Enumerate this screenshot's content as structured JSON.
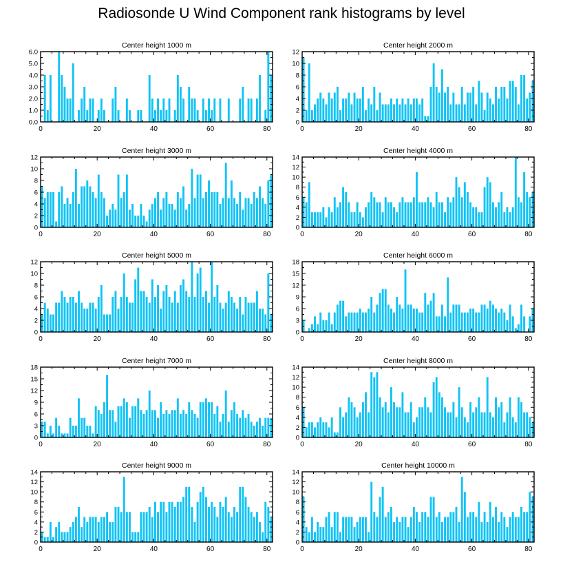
{
  "figure": {
    "title": "Radiosonde U Wind Component rank histograms by level",
    "bar_color": "#12c3f5"
  },
  "chart_data": [
    {
      "type": "bar",
      "title": "Center height 1000 m",
      "xlim": [
        0,
        82
      ],
      "ylim": [
        0,
        6
      ],
      "xticks": [
        0,
        20,
        40,
        60,
        80
      ],
      "yticks": [
        0,
        1,
        2,
        3,
        4,
        5,
        6
      ],
      "ytick_labels": [
        "0.0",
        "1.0",
        "2.0",
        "3.0",
        "4.0",
        "5.0",
        "6.0"
      ],
      "values": [
        0,
        4,
        1,
        4,
        0,
        0,
        6,
        4,
        3,
        2,
        2,
        5,
        0,
        1,
        2,
        3,
        1,
        2,
        2,
        0,
        1,
        2,
        1,
        0,
        0,
        2,
        3,
        1,
        0,
        0,
        2,
        1,
        0,
        0,
        1,
        1,
        0,
        0,
        4,
        2,
        1,
        2,
        1,
        2,
        1,
        2,
        0,
        1,
        4,
        3,
        2,
        0,
        3,
        2,
        2,
        1,
        0,
        2,
        1,
        2,
        1,
        2,
        0,
        2,
        0,
        0,
        2,
        0,
        0,
        0,
        2,
        3,
        0,
        2,
        2,
        0,
        2,
        4,
        0,
        1,
        6,
        4
      ]
    },
    {
      "type": "bar",
      "title": "Center height 2000 m",
      "xlim": [
        0,
        82
      ],
      "ylim": [
        0,
        12
      ],
      "xticks": [
        0,
        20,
        40,
        60,
        80
      ],
      "yticks": [
        0,
        2,
        4,
        6,
        8,
        10,
        12
      ],
      "values": [
        11,
        2,
        10,
        2,
        3,
        4,
        5,
        4,
        3,
        5,
        4,
        5,
        6,
        2,
        4,
        4,
        5,
        3,
        5,
        4,
        4,
        6,
        2,
        4,
        3,
        6,
        2,
        5,
        3,
        3,
        3,
        4,
        3,
        4,
        3,
        4,
        3,
        4,
        3,
        4,
        4,
        3,
        4,
        1,
        1,
        6,
        10,
        6,
        5,
        9,
        5,
        6,
        3,
        5,
        3,
        3,
        6,
        3,
        5,
        5,
        6,
        3,
        7,
        5,
        2,
        5,
        4,
        3,
        6,
        4,
        6,
        6,
        4,
        7,
        7,
        6,
        3,
        8,
        8,
        4,
        5,
        7
      ]
    },
    {
      "type": "bar",
      "title": "Center height 3000 m",
      "xlim": [
        0,
        82
      ],
      "ylim": [
        0,
        12
      ],
      "xticks": [
        0,
        20,
        40,
        60,
        80
      ],
      "yticks": [
        0,
        2,
        4,
        6,
        8,
        10,
        12
      ],
      "values": [
        7,
        5,
        6,
        6,
        6,
        1,
        6,
        7,
        4,
        5,
        4,
        6,
        10,
        4,
        7,
        7,
        8,
        7,
        6,
        5,
        9,
        6,
        5,
        2,
        3,
        4,
        3,
        9,
        5,
        6,
        9,
        3,
        4,
        2,
        2,
        4,
        2,
        1,
        3,
        4,
        5,
        6,
        3,
        5,
        6,
        4,
        4,
        3,
        6,
        5,
        7,
        3,
        4,
        10,
        5,
        9,
        9,
        5,
        6,
        8,
        6,
        6,
        6,
        4,
        5,
        11,
        5,
        8,
        5,
        4,
        6,
        3,
        5,
        5,
        4,
        6,
        5,
        7,
        5,
        4,
        8,
        9
      ]
    },
    {
      "type": "bar",
      "title": "Center height 4000 m",
      "xlim": [
        0,
        82
      ],
      "ylim": [
        0,
        14
      ],
      "xticks": [
        0,
        20,
        40,
        60,
        80
      ],
      "yticks": [
        0,
        2,
        4,
        6,
        8,
        10,
        12,
        14
      ],
      "values": [
        6,
        5,
        9,
        3,
        3,
        3,
        3,
        4,
        2,
        4,
        3,
        6,
        4,
        5,
        8,
        7,
        5,
        3,
        3,
        5,
        3,
        2,
        4,
        5,
        7,
        6,
        5,
        5,
        3,
        6,
        5,
        5,
        4,
        3,
        5,
        6,
        5,
        5,
        5,
        6,
        11,
        5,
        5,
        5,
        6,
        5,
        4,
        7,
        5,
        5,
        3,
        6,
        5,
        6,
        10,
        8,
        6,
        9,
        7,
        5,
        4,
        4,
        3,
        3,
        8,
        10,
        9,
        5,
        4,
        5,
        7,
        3,
        4,
        3,
        4,
        14,
        6,
        5,
        11,
        7,
        6,
        7
      ]
    },
    {
      "type": "bar",
      "title": "Center height 5000 m",
      "xlim": [
        0,
        82
      ],
      "ylim": [
        0,
        12
      ],
      "xticks": [
        0,
        20,
        40,
        60,
        80
      ],
      "yticks": [
        0,
        2,
        4,
        6,
        8,
        10,
        12
      ],
      "values": [
        3,
        5,
        4,
        3,
        3,
        5,
        5,
        7,
        6,
        5,
        6,
        6,
        5,
        7,
        5,
        4,
        4,
        5,
        5,
        4,
        6,
        8,
        3,
        3,
        3,
        6,
        7,
        4,
        6,
        10,
        6,
        5,
        5,
        9,
        11,
        7,
        7,
        6,
        5,
        9,
        6,
        8,
        4,
        7,
        8,
        6,
        5,
        7,
        5,
        8,
        9,
        7,
        6,
        12,
        6,
        10,
        11,
        6,
        7,
        5,
        12,
        6,
        8,
        5,
        4,
        5,
        7,
        6,
        5,
        4,
        6,
        3,
        6,
        5,
        5,
        5,
        7,
        4,
        4,
        3,
        10,
        3
      ]
    },
    {
      "type": "bar",
      "title": "Center height 6000 m",
      "xlim": [
        0,
        82
      ],
      "ylim": [
        0,
        18
      ],
      "xticks": [
        0,
        20,
        40,
        60,
        80
      ],
      "yticks": [
        0,
        3,
        6,
        9,
        12,
        15,
        18
      ],
      "values": [
        3,
        0,
        1,
        2,
        4,
        2,
        5,
        3,
        3,
        5,
        2,
        5,
        7,
        8,
        8,
        4,
        5,
        5,
        5,
        5,
        6,
        5,
        5,
        6,
        9,
        5,
        7,
        10,
        11,
        11,
        7,
        6,
        5,
        9,
        7,
        6,
        16,
        7,
        7,
        6,
        6,
        5,
        5,
        10,
        7,
        8,
        10,
        4,
        4,
        7,
        4,
        14,
        5,
        7,
        7,
        7,
        5,
        5,
        5,
        6,
        6,
        5,
        5,
        7,
        7,
        6,
        8,
        7,
        6,
        5,
        6,
        5,
        3,
        7,
        4,
        1,
        2,
        7,
        4,
        0,
        4,
        6
      ]
    },
    {
      "type": "bar",
      "title": "Center height 7000 m",
      "xlim": [
        0,
        82
      ],
      "ylim": [
        0,
        18
      ],
      "xticks": [
        0,
        20,
        40,
        60,
        80
      ],
      "yticks": [
        0,
        3,
        6,
        9,
        12,
        15,
        18
      ],
      "values": [
        4,
        4,
        1,
        3,
        1,
        5,
        3,
        1,
        1,
        1,
        5,
        3,
        3,
        10,
        5,
        5,
        3,
        3,
        1,
        8,
        7,
        6,
        9,
        16,
        7,
        7,
        4,
        8,
        8,
        10,
        9,
        5,
        8,
        8,
        10,
        7,
        6,
        7,
        12,
        7,
        7,
        5,
        9,
        6,
        7,
        6,
        7,
        7,
        10,
        6,
        7,
        6,
        9,
        7,
        6,
        5,
        9,
        9,
        10,
        9,
        9,
        6,
        8,
        4,
        6,
        12,
        4,
        7,
        9,
        6,
        5,
        7,
        5,
        6,
        4,
        3,
        4,
        5,
        3,
        5,
        5,
        5
      ]
    },
    {
      "type": "bar",
      "title": "Center height 8000 m",
      "xlim": [
        0,
        82
      ],
      "ylim": [
        0,
        14
      ],
      "xticks": [
        0,
        20,
        40,
        60,
        80
      ],
      "yticks": [
        0,
        2,
        4,
        6,
        8,
        10,
        12,
        14
      ],
      "values": [
        6,
        2,
        3,
        3,
        2,
        3,
        4,
        3,
        3,
        2,
        4,
        1,
        1,
        6,
        4,
        5,
        8,
        7,
        6,
        4,
        5,
        7,
        9,
        5,
        13,
        12,
        13,
        8,
        6,
        7,
        5,
        10,
        7,
        6,
        6,
        9,
        5,
        5,
        7,
        3,
        4,
        6,
        6,
        8,
        6,
        5,
        11,
        12,
        9,
        8,
        6,
        5,
        5,
        7,
        4,
        10,
        6,
        4,
        3,
        7,
        5,
        6,
        8,
        5,
        5,
        12,
        5,
        4,
        8,
        6,
        7,
        3,
        5,
        8,
        4,
        3,
        8,
        7,
        5,
        5,
        4,
        3
      ]
    },
    {
      "type": "bar",
      "title": "Center height 9000 m",
      "xlim": [
        0,
        82
      ],
      "ylim": [
        0,
        14
      ],
      "xticks": [
        0,
        20,
        40,
        60,
        80
      ],
      "yticks": [
        0,
        2,
        4,
        6,
        8,
        10,
        12,
        14
      ],
      "values": [
        2,
        1,
        1,
        4,
        1,
        3,
        4,
        2,
        2,
        2,
        3,
        4,
        5,
        7,
        3,
        5,
        4,
        5,
        5,
        5,
        4,
        5,
        5,
        6,
        4,
        4,
        7,
        7,
        6,
        13,
        6,
        6,
        2,
        2,
        2,
        6,
        6,
        6,
        7,
        5,
        8,
        6,
        8,
        8,
        6,
        8,
        8,
        7,
        8,
        8,
        9,
        11,
        11,
        7,
        4,
        8,
        10,
        11,
        9,
        7,
        8,
        7,
        5,
        8,
        7,
        9,
        6,
        5,
        7,
        6,
        11,
        11,
        9,
        7,
        6,
        5,
        6,
        4,
        2,
        8,
        7,
        5
      ]
    },
    {
      "type": "bar",
      "title": "Center height 10000 m",
      "xlim": [
        0,
        82
      ],
      "ylim": [
        0,
        14
      ],
      "xticks": [
        0,
        20,
        40,
        60,
        80
      ],
      "yticks": [
        0,
        2,
        4,
        6,
        8,
        10,
        12,
        14
      ],
      "values": [
        9,
        3,
        2,
        5,
        2,
        4,
        3,
        3,
        5,
        6,
        3,
        6,
        6,
        2,
        5,
        5,
        5,
        5,
        3,
        4,
        5,
        5,
        5,
        2,
        12,
        6,
        5,
        9,
        11,
        5,
        6,
        7,
        4,
        5,
        4,
        5,
        5,
        3,
        5,
        7,
        6,
        4,
        6,
        6,
        5,
        9,
        9,
        5,
        6,
        4,
        5,
        5,
        6,
        6,
        7,
        4,
        13,
        10,
        5,
        6,
        6,
        5,
        8,
        4,
        6,
        4,
        8,
        5,
        7,
        4,
        6,
        5,
        3,
        5,
        6,
        5,
        5,
        7,
        6,
        6,
        10,
        9
      ]
    }
  ]
}
